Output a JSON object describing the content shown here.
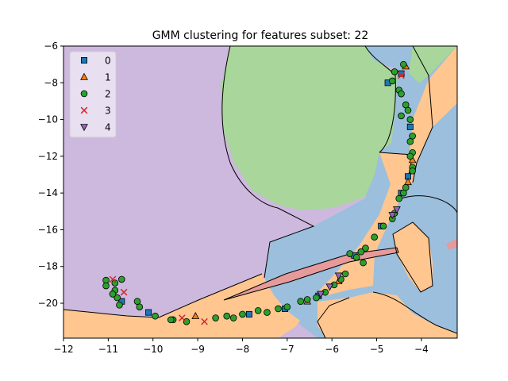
{
  "chart_data": {
    "type": "scatter",
    "title": "GMM clustering for features subset: 22",
    "xlabel": "",
    "ylabel": "",
    "xlim": [
      -12,
      -3.2
    ],
    "ylim": [
      -21.9,
      -6
    ],
    "xticks": [
      -12,
      -11,
      -10,
      -9,
      -8,
      -7,
      -6,
      -5,
      -4
    ],
    "yticks": [
      -6,
      -8,
      -10,
      -12,
      -14,
      -16,
      -18,
      -20
    ],
    "legend_position": "top-left",
    "grid": false,
    "cluster_colors": [
      "#1f77b4",
      "#ff7f0e",
      "#2ca02c",
      "#d62728",
      "#9467bd"
    ],
    "region_colors": [
      "#9bbfdc",
      "#ffc690",
      "#a8d69b",
      "#e69a9a",
      "#cdb8de"
    ],
    "series": [
      {
        "name": "0",
        "marker": "square",
        "color": "#1f77b4",
        "points": [
          [
            -4.45,
            -7.5
          ],
          [
            -4.75,
            -8.0
          ],
          [
            -4.25,
            -10.4
          ],
          [
            -4.3,
            -13.1
          ],
          [
            -4.45,
            -14.0
          ],
          [
            -4.9,
            -15.8
          ],
          [
            -5.5,
            -17.4
          ],
          [
            -6.3,
            -19.6
          ],
          [
            -7.05,
            -20.3
          ],
          [
            -7.85,
            -20.6
          ],
          [
            -10.1,
            -20.5
          ],
          [
            -10.7,
            -19.9
          ]
        ]
      },
      {
        "name": "1",
        "marker": "triangle-up",
        "color": "#ff7f0e",
        "points": [
          [
            -4.35,
            -7.1
          ],
          [
            -4.2,
            -12.2
          ],
          [
            -4.3,
            -13.4
          ],
          [
            -5.85,
            -18.8
          ],
          [
            -6.55,
            -19.9
          ],
          [
            -9.05,
            -20.7
          ]
        ]
      },
      {
        "name": "2",
        "marker": "circle",
        "color": "#2ca02c",
        "points": [
          [
            -4.4,
            -7.0
          ],
          [
            -4.6,
            -7.4
          ],
          [
            -4.65,
            -7.9
          ],
          [
            -4.5,
            -8.4
          ],
          [
            -4.45,
            -8.6
          ],
          [
            -4.35,
            -9.2
          ],
          [
            -4.3,
            -9.5
          ],
          [
            -4.45,
            -9.8
          ],
          [
            -4.25,
            -10.0
          ],
          [
            -4.2,
            -10.9
          ],
          [
            -4.25,
            -11.2
          ],
          [
            -4.2,
            -11.8
          ],
          [
            -4.25,
            -12.0
          ],
          [
            -4.2,
            -12.6
          ],
          [
            -4.2,
            -12.8
          ],
          [
            -4.35,
            -13.7
          ],
          [
            -4.4,
            -14.0
          ],
          [
            -4.5,
            -14.3
          ],
          [
            -4.6,
            -15.1
          ],
          [
            -4.65,
            -15.4
          ],
          [
            -4.85,
            -15.8
          ],
          [
            -5.05,
            -16.4
          ],
          [
            -5.25,
            -17.0
          ],
          [
            -5.35,
            -17.2
          ],
          [
            -5.45,
            -17.5
          ],
          [
            -5.6,
            -17.3
          ],
          [
            -5.3,
            -17.8
          ],
          [
            -5.7,
            -18.4
          ],
          [
            -5.8,
            -18.7
          ],
          [
            -5.95,
            -19.0
          ],
          [
            -6.15,
            -19.4
          ],
          [
            -6.35,
            -19.7
          ],
          [
            -6.55,
            -19.8
          ],
          [
            -6.7,
            -19.9
          ],
          [
            -7.0,
            -20.2
          ],
          [
            -7.2,
            -20.3
          ],
          [
            -7.45,
            -20.5
          ],
          [
            -7.65,
            -20.4
          ],
          [
            -8.0,
            -20.6
          ],
          [
            -8.2,
            -20.8
          ],
          [
            -8.35,
            -20.7
          ],
          [
            -8.6,
            -20.8
          ],
          [
            -9.25,
            -21.0
          ],
          [
            -9.55,
            -20.9
          ],
          [
            -9.6,
            -20.9
          ],
          [
            -9.95,
            -20.7
          ],
          [
            -10.3,
            -20.2
          ],
          [
            -10.35,
            -19.9
          ],
          [
            -10.75,
            -20.1
          ],
          [
            -10.8,
            -19.7
          ],
          [
            -10.7,
            -18.7
          ],
          [
            -10.85,
            -18.9
          ],
          [
            -10.85,
            -19.3
          ],
          [
            -10.9,
            -19.5
          ],
          [
            -11.05,
            -18.75
          ],
          [
            -11.05,
            -19.05
          ]
        ]
      },
      {
        "name": "3",
        "marker": "x",
        "color": "#d62728",
        "points": [
          [
            -4.45,
            -7.6
          ],
          [
            -10.9,
            -18.7
          ],
          [
            -10.65,
            -19.4
          ],
          [
            -9.35,
            -20.8
          ],
          [
            -8.85,
            -21.0
          ]
        ]
      },
      {
        "name": "4",
        "marker": "triangle-down",
        "color": "#9467bd",
        "points": [
          [
            -4.55,
            -14.9
          ],
          [
            -4.65,
            -15.2
          ],
          [
            -5.85,
            -18.5
          ],
          [
            -6.05,
            -19.1
          ],
          [
            -6.25,
            -19.5
          ]
        ]
      }
    ]
  }
}
